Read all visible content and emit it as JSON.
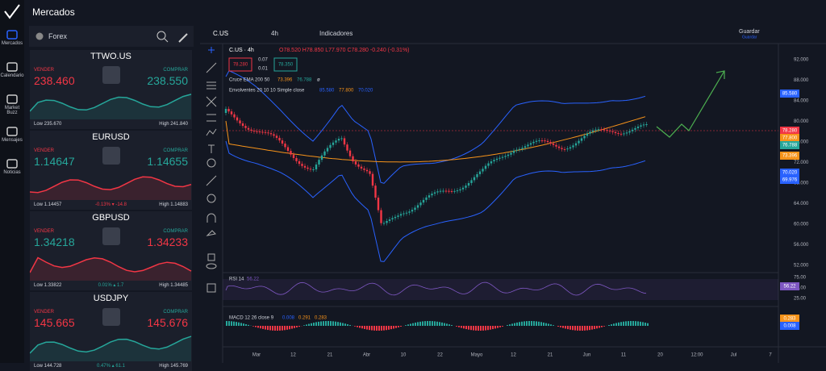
{
  "header": {
    "title": "Mercados"
  },
  "sidebar": {
    "items": [
      "Mercados",
      "Calendario",
      "Market Buzz",
      "Mensajes",
      "Noticias"
    ]
  },
  "watchlist": {
    "category": "Forex",
    "sell_label": "VENDER",
    "buy_label": "COMPRAR",
    "instruments": [
      {
        "symbol": "TTWO.US",
        "sell": "238.460",
        "buy": "238.550",
        "low": "Low 235.670",
        "high": "High 241.840",
        "sell_color": "#f23645",
        "buy_color": "#26a69a",
        "trend_color": "#26a69a"
      },
      {
        "symbol": "EURUSD",
        "sell": "1.14647",
        "buy": "1.14655",
        "low": "Low 1.14457",
        "change": "-0.13% ▾ -14.8",
        "high": "High 1.14883",
        "sell_color": "#26a69a",
        "buy_color": "#26a69a",
        "change_color": "#f23645",
        "trend_color": "#f23645"
      },
      {
        "symbol": "GBPUSD",
        "sell": "1.34218",
        "buy": "1.34233",
        "low": "Low 1.33822",
        "change": "0.01% ▴ 1.7",
        "high": "High 1.34485",
        "sell_color": "#26a69a",
        "buy_color": "#f23645",
        "change_color": "#26a69a",
        "trend_color": "#f23645"
      },
      {
        "symbol": "USDJPY",
        "sell": "145.665",
        "buy": "145.676",
        "low": "Low 144.728",
        "change": "0.47% ▴ 61.1",
        "high": "High 145.769",
        "sell_color": "#f23645",
        "buy_color": "#f23645",
        "change_color": "#26a69a",
        "trend_color": "#26a69a"
      }
    ]
  },
  "toolbar": {
    "symbol": "C.US",
    "interval": "4h",
    "indicators": "Indicadores",
    "save": "Guardar",
    "save_sub": "Guardar"
  },
  "legend": {
    "title": "C.US · 4h",
    "ohlc": "O78.520 H78.850 L77.970 C78.280 -0.240 (-0.31%)",
    "bid": "78.280",
    "spread_top": "0.07",
    "spread_bottom": "0.01",
    "ask": "78.350",
    "ema": {
      "name": "Cruce EMA 200 50",
      "v1": "73.396",
      "v2": "76.788",
      "extra": "ø"
    },
    "env": {
      "name": "Envolventes 20 10 10 Simple close",
      "v1": "85.580",
      "v2": "77.800",
      "v3": "70.020"
    },
    "rsi": {
      "name": "RSI 14",
      "v": "56.22"
    },
    "macd": {
      "name": "MACD 12 26 close 9",
      "v1": "0.008",
      "v2": "0.291",
      "v3": "0.283"
    }
  },
  "price_axis": [
    "92.000",
    "88.000",
    "84.000",
    "80.000",
    "76.000",
    "72.000",
    "68.000",
    "64.000",
    "60.000",
    "56.000",
    "52.000"
  ],
  "rsi_axis": [
    "75.00",
    "50.00",
    "25.00"
  ],
  "badges": [
    {
      "text": "85.580",
      "color": "#2962ff"
    },
    {
      "text": "78.280",
      "color": "#f23645"
    },
    {
      "text": "77.800",
      "color": "#f7931a"
    },
    {
      "text": "76.788",
      "color": "#26a69a"
    },
    {
      "text": "73.396",
      "color": "#f7931a"
    },
    {
      "text": "70.020",
      "color": "#2962ff"
    },
    {
      "text": "69.976",
      "color": "#2962ff"
    },
    {
      "text": "56.22",
      "color": "#7e57c2"
    },
    {
      "text": "0.283",
      "color": "#f7931a"
    },
    {
      "text": "0.008",
      "color": "#2962ff"
    }
  ],
  "time_axis": [
    "Mar",
    "12",
    "21",
    "Abr",
    "10",
    "22",
    "Mayo",
    "12",
    "21",
    "Jun",
    "11",
    "20",
    "12:00",
    "Jul",
    "7"
  ]
}
